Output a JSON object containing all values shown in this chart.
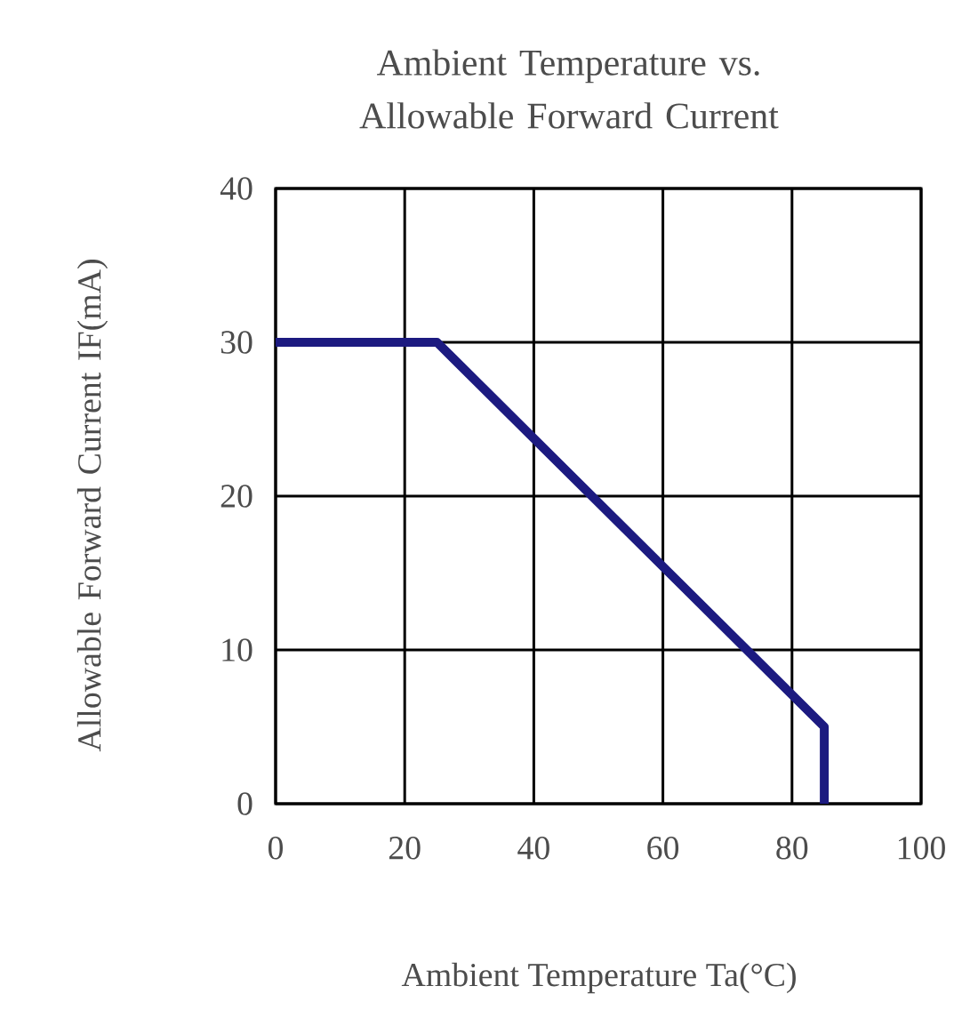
{
  "chart_data": {
    "type": "line",
    "title": "Ambient Temperature vs. Allowable Forward Current",
    "xlabel": "Ambient Temperature Ta(°C)",
    "ylabel": "Allowable Forward Current IF(mA)",
    "series": [
      {
        "x": [
          0,
          25,
          85,
          85
        ],
        "values": [
          30,
          30,
          5,
          0
        ],
        "color": "#1c1a80"
      }
    ],
    "xlim": [
      0,
      100
    ],
    "ylim": [
      0,
      40
    ],
    "xticks": [
      0,
      20,
      40,
      60,
      80,
      100
    ],
    "yticks": [
      0,
      10,
      20,
      30,
      40
    ],
    "grid": true,
    "line_style": "solid",
    "marker": "none"
  }
}
